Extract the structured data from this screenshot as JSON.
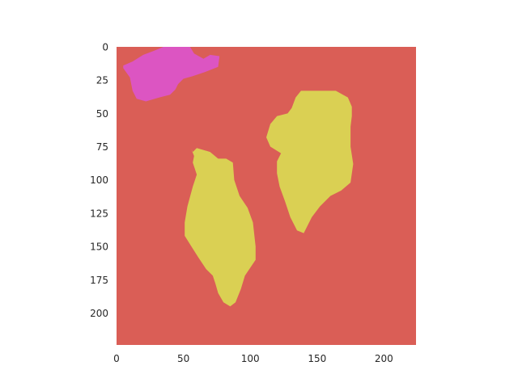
{
  "chart_data": {
    "type": "heatmap",
    "title": "",
    "xlabel": "",
    "ylabel": "",
    "xlim": [
      0,
      224
    ],
    "ylim": [
      224,
      0
    ],
    "grid": false,
    "legend": "none",
    "x_ticks": [
      "0",
      "50",
      "100",
      "150",
      "200"
    ],
    "x_tick_values": [
      0,
      50,
      100,
      150,
      200
    ],
    "y_ticks": [
      "0",
      "25",
      "50",
      "75",
      "100",
      "125",
      "150",
      "175",
      "200"
    ],
    "y_tick_values": [
      0,
      25,
      50,
      75,
      100,
      125,
      150,
      175,
      200
    ],
    "background_color": "#da5e56",
    "regions": [
      {
        "label": "magenta-region",
        "color": "#dc55c2",
        "outline": [
          [
            5,
            14
          ],
          [
            12,
            11
          ],
          [
            20,
            6
          ],
          [
            28,
            3
          ],
          [
            35,
            0
          ],
          [
            55,
            0
          ],
          [
            58,
            5
          ],
          [
            65,
            9
          ],
          [
            70,
            6
          ],
          [
            77,
            7
          ],
          [
            76,
            15
          ],
          [
            66,
            19
          ],
          [
            57,
            22
          ],
          [
            50,
            24
          ],
          [
            46,
            28
          ],
          [
            44,
            32
          ],
          [
            40,
            36
          ],
          [
            32,
            38
          ],
          [
            22,
            41
          ],
          [
            15,
            39
          ],
          [
            12,
            33
          ],
          [
            10,
            23
          ],
          [
            5,
            16
          ]
        ]
      },
      {
        "label": "yellow-region-left",
        "color": "#dad053",
        "outline": [
          [
            56,
            77
          ],
          [
            57,
            79
          ],
          [
            60,
            76
          ],
          [
            70,
            79
          ],
          [
            76,
            84
          ],
          [
            82,
            84
          ],
          [
            87,
            87
          ],
          [
            88,
            100
          ],
          [
            92,
            112
          ],
          [
            98,
            121
          ],
          [
            102,
            132
          ],
          [
            104,
            150
          ],
          [
            104,
            160
          ],
          [
            96,
            172
          ],
          [
            93,
            182
          ],
          [
            89,
            192
          ],
          [
            85,
            195
          ],
          [
            80,
            192
          ],
          [
            76,
            185
          ],
          [
            74,
            178
          ],
          [
            72,
            172
          ],
          [
            67,
            167
          ],
          [
            61,
            158
          ],
          [
            56,
            150
          ],
          [
            51,
            142
          ],
          [
            51,
            132
          ],
          [
            53,
            120
          ],
          [
            57,
            105
          ],
          [
            60,
            96
          ],
          [
            57,
            87
          ],
          [
            58,
            82
          ]
        ]
      },
      {
        "label": "yellow-region-right",
        "color": "#dad053",
        "outline": [
          [
            131,
            46
          ],
          [
            134,
            38
          ],
          [
            138,
            33
          ],
          [
            164,
            33
          ],
          [
            173,
            38
          ],
          [
            176,
            45
          ],
          [
            176,
            52
          ],
          [
            175,
            60
          ],
          [
            175,
            75
          ],
          [
            177,
            88
          ],
          [
            175,
            102
          ],
          [
            168,
            108
          ],
          [
            160,
            112
          ],
          [
            152,
            120
          ],
          [
            146,
            128
          ],
          [
            140,
            140
          ],
          [
            135,
            138
          ],
          [
            130,
            128
          ],
          [
            126,
            116
          ],
          [
            122,
            105
          ],
          [
            120,
            95
          ],
          [
            120,
            86
          ],
          [
            123,
            80
          ],
          [
            115,
            75
          ],
          [
            112,
            68
          ],
          [
            115,
            58
          ],
          [
            120,
            52
          ],
          [
            128,
            50
          ]
        ]
      }
    ]
  }
}
